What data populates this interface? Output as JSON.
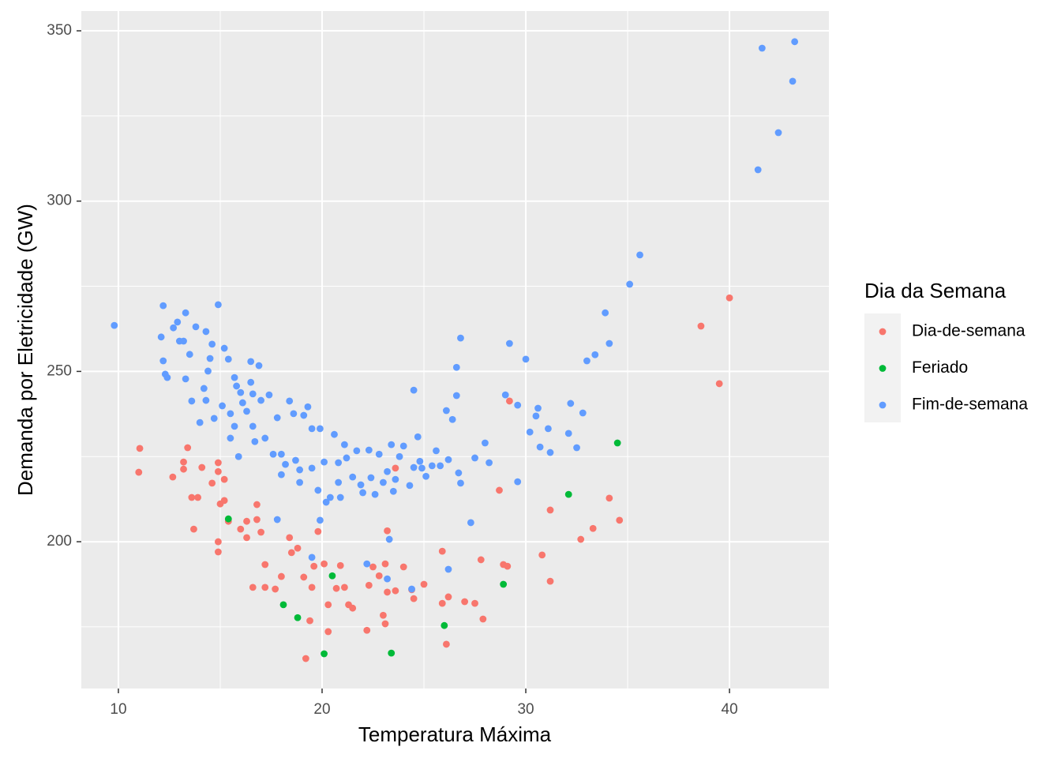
{
  "chart_data": {
    "type": "scatter",
    "x_label": "Temperatura Máxima",
    "y_label": "Demanda por Eletricidade (GW)",
    "legend_title": "Dia da Semana",
    "legend_position": "right",
    "grid": true,
    "xlim": [
      8.18,
      44.88
    ],
    "ylim": [
      156.9,
      355.8
    ],
    "xticks": [
      10,
      20,
      30,
      40
    ],
    "yticks": [
      200,
      250,
      300,
      350
    ],
    "series": [
      {
        "name": "Dia-de-semana",
        "color": "#F8766D",
        "x": [
          11.05,
          11.0,
          12.67,
          13.2,
          13.2,
          13.4,
          13.6,
          13.9,
          14.1,
          14.6,
          14.9,
          14.9,
          15.0,
          15.2,
          15.2,
          13.7,
          14.9,
          14.9,
          15.4,
          16.0,
          16.3,
          16.3,
          16.8,
          16.8,
          17.0,
          17.2,
          17.2,
          16.6,
          17.7,
          18.0,
          18.4,
          18.5,
          18.8,
          19.4,
          19.2,
          19.1,
          19.5,
          19.6,
          19.8,
          20.1,
          20.3,
          20.3,
          20.7,
          20.9,
          21.1,
          21.3,
          21.5,
          22.2,
          22.3,
          22.5,
          22.8,
          23.0,
          23.1,
          23.1,
          23.2,
          23.2,
          23.6,
          23.6,
          24.0,
          24.4,
          24.5,
          25.0,
          25.9,
          25.9,
          26.1,
          26.2,
          27.0,
          27.5,
          27.8,
          27.9,
          28.7,
          28.9,
          29.1,
          29.2,
          30.8,
          31.2,
          31.2,
          32.7,
          33.3,
          34.1,
          34.6,
          38.6,
          39.5,
          40.0
        ],
        "y": [
          227.4,
          220.4,
          219.0,
          223.4,
          221.3,
          227.6,
          213.0,
          213.0,
          221.8,
          217.2,
          223.2,
          220.6,
          211.1,
          212.1,
          218.3,
          203.7,
          200,
          197,
          206,
          203.7,
          206,
          201.2,
          210.9,
          206.5,
          202.8,
          193.3,
          186.6,
          186.6,
          186.1,
          189.8,
          201.2,
          196.8,
          198.1,
          176.8,
          165.7,
          189.6,
          186.6,
          192.8,
          203.0,
          193.5,
          181.5,
          173.6,
          186.3,
          193.0,
          186.6,
          181.5,
          180.5,
          174.0,
          187.2,
          192.6,
          190.0,
          178.4,
          175.9,
          193.5,
          185.2,
          203.2,
          185.6,
          221.6,
          192.6,
          185.9,
          183.3,
          187.5,
          197.2,
          181.9,
          169.9,
          183.8,
          182.4,
          181.9,
          194.7,
          177.3,
          215.1,
          193.3,
          192.8,
          241.3,
          196.1,
          209.3,
          188.4,
          200.7,
          203.9,
          212.8,
          206.3,
          263.3,
          246.4,
          271.6
        ]
      },
      {
        "name": "Feriado",
        "color": "#00BA38",
        "x": [
          15.4,
          18.1,
          18.8,
          20.1,
          20.5,
          23.4,
          26.0,
          28.9,
          32.1,
          34.5
        ],
        "y": [
          206.7,
          181.5,
          177.7,
          167.1,
          190.0,
          167.3,
          175.4,
          187.5,
          213.9,
          229.0
        ]
      },
      {
        "name": "Fim-de-semana",
        "color": "#619CFF",
        "x": [
          9.8,
          12.2,
          12.1,
          12.2,
          12.3,
          12.4,
          12.7,
          12.9,
          13.0,
          13.2,
          13.3,
          13.3,
          13.5,
          13.8,
          13.6,
          14.0,
          14.3,
          14.9,
          14.6,
          14.5,
          14.4,
          14.2,
          14.3,
          14.7,
          15.2,
          15.4,
          15.1,
          15.5,
          15.7,
          15.8,
          15.7,
          15.5,
          15.9,
          16.0,
          16.1,
          16.3,
          16.5,
          16.5,
          16.6,
          16.6,
          16.7,
          16.9,
          17.0,
          17.2,
          17.4,
          17.6,
          17.8,
          18.0,
          18.0,
          18.2,
          17.8,
          18.4,
          18.6,
          18.7,
          18.9,
          18.9,
          19.1,
          19.3,
          19.5,
          19.5,
          19.5,
          19.8,
          19.9,
          19.9,
          20.1,
          20.2,
          20.4,
          20.6,
          20.8,
          20.8,
          20.9,
          21.1,
          21.2,
          21.5,
          21.7,
          21.9,
          22.0,
          22.3,
          22.4,
          22.6,
          22.8,
          23.0,
          23.2,
          23.3,
          23.4,
          23.5,
          23.6,
          23.8,
          24.0,
          24.3,
          24.5,
          24.5,
          24.7,
          24.8,
          24.9,
          25.1,
          25.4,
          25.6,
          25.8,
          26.1,
          26.2,
          26.2,
          26.4,
          26.6,
          26.6,
          26.7,
          26.8,
          26.8,
          27.3,
          27.5,
          28.0,
          28.2,
          29.0,
          29.2,
          29.6,
          29.6,
          30.0,
          30.2,
          30.5,
          30.6,
          30.7,
          31.2,
          31.1,
          32.2,
          32.1,
          32.5,
          32.8,
          33.0,
          33.4,
          33.9,
          34.1,
          35.1,
          35.6,
          41.4,
          41.6,
          42.4,
          43.1,
          43.2,
          23.2,
          22.2,
          24.4
        ],
        "y": [
          263.5,
          269.3,
          260.1,
          253.1,
          249.2,
          248.2,
          262.8,
          264.5,
          258.9,
          258.9,
          267.2,
          247.8,
          255.0,
          263.1,
          241.3,
          235.0,
          261.7,
          269.6,
          258.0,
          253.8,
          250.1,
          245.0,
          241.5,
          236.2,
          256.8,
          253.6,
          239.9,
          237.6,
          248.2,
          245.7,
          233.9,
          230.4,
          225.0,
          243.8,
          240.8,
          238.3,
          252.9,
          246.8,
          233.9,
          243.4,
          229.4,
          251.7,
          241.5,
          230.4,
          243.1,
          225.7,
          236.4,
          225.7,
          219.7,
          222.7,
          206.5,
          241.3,
          237.6,
          223.9,
          221.1,
          217.4,
          237.1,
          239.6,
          233.2,
          221.6,
          195.4,
          215.1,
          206.3,
          233.2,
          223.4,
          211.6,
          213.0,
          231.5,
          223.2,
          217.4,
          213.0,
          228.5,
          224.6,
          219.0,
          226.7,
          216.7,
          214.4,
          226.9,
          218.8,
          213.9,
          225.7,
          217.4,
          220.6,
          200.7,
          228.5,
          214.8,
          218.3,
          225.0,
          228.1,
          216.5,
          244.5,
          221.8,
          230.8,
          223.6,
          221.6,
          219.2,
          222.3,
          226.7,
          222.3,
          238.5,
          224.1,
          191.9,
          235.9,
          242.9,
          251.2,
          220.2,
          259.8,
          217.2,
          205.6,
          224.6,
          229.0,
          223.2,
          243.1,
          258.2,
          240.1,
          217.6,
          253.6,
          232.2,
          236.9,
          239.2,
          227.8,
          226.2,
          233.2,
          240.6,
          231.8,
          227.6,
          237.8,
          253.1,
          254.9,
          267.2,
          258.2,
          275.6,
          284.2,
          309.2,
          344.9,
          320.1,
          335.2,
          346.8,
          189.1,
          193.5,
          186.1
        ]
      }
    ]
  }
}
